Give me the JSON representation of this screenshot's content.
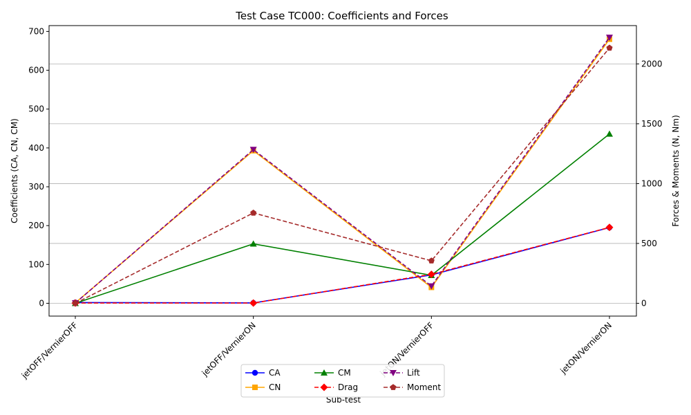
{
  "chart_data": {
    "type": "line",
    "title": "Test Case TC000: Coefficients and Forces",
    "xlabel": "Sub-test",
    "ylabel_left": "Coefficients (CA, CN, CM)",
    "ylabel_right": "Forces & Moments (N, Nm)",
    "categories": [
      "jetOFF/VernierOFF",
      "jetOFF/VernierON",
      "jetON/VernierOFF",
      "jetON/VernierON"
    ],
    "ylim_left": [
      -33,
      715
    ],
    "ylim_right": [
      -107,
      2320
    ],
    "yticks_left": [
      0,
      100,
      200,
      300,
      400,
      500,
      600,
      700
    ],
    "yticks_right": [
      0,
      500,
      1000,
      1500,
      2000
    ],
    "grid": "horizontal, right axis",
    "legend_position": "bottom-center",
    "series": [
      {
        "name": "CA",
        "axis": "left",
        "color": "#0000ff",
        "marker": "circle",
        "dash": "solid",
        "values": [
          2,
          1,
          73,
          195
        ]
      },
      {
        "name": "CN",
        "axis": "left",
        "color": "#ffa500",
        "marker": "square",
        "dash": "solid",
        "values": [
          1,
          393,
          41,
          680
        ]
      },
      {
        "name": "CM",
        "axis": "left",
        "color": "#008000",
        "marker": "triangle-up",
        "dash": "solid",
        "values": [
          0,
          153,
          72,
          436
        ]
      },
      {
        "name": "Drag",
        "axis": "right",
        "color": "#ff0000",
        "marker": "diamond",
        "dash": "dashed",
        "values": [
          2,
          2,
          242,
          634
        ]
      },
      {
        "name": "Lift",
        "axis": "right",
        "color": "#800080",
        "marker": "triangle-down",
        "dash": "dashed",
        "values": [
          2,
          1284,
          144,
          2221
        ]
      },
      {
        "name": "Moment",
        "axis": "right",
        "color": "#a52a2a",
        "marker": "pentagon",
        "dash": "dashed",
        "values": [
          0,
          755,
          355,
          2133
        ]
      }
    ]
  }
}
